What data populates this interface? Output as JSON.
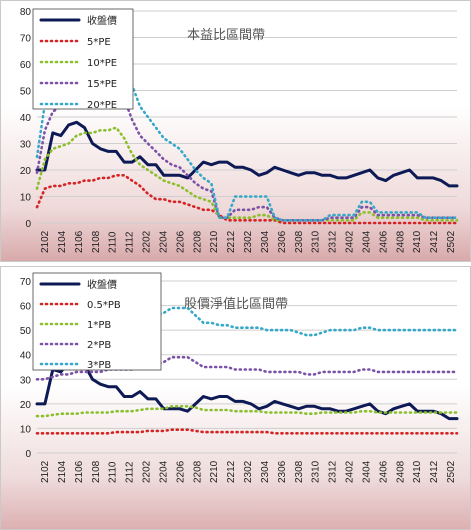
{
  "colors": {
    "close": "#0d1a55",
    "c1": "#d62222",
    "c2": "#8cbf2e",
    "c3": "#7b52a8",
    "c4": "#34a8c8"
  },
  "chart_data": [
    {
      "type": "line",
      "title": "本益比區間帶",
      "ylim": [
        0,
        80
      ],
      "yticks": [
        0,
        10,
        20,
        30,
        40,
        50,
        60,
        70,
        80
      ],
      "x_tick_labels": [
        "2102",
        "2104",
        "2106",
        "2108",
        "2110",
        "2112",
        "2202",
        "2204",
        "2206",
        "2208",
        "2210",
        "2212",
        "2302",
        "2304",
        "2306",
        "2308",
        "2310",
        "2312",
        "2402",
        "2404",
        "2406",
        "2408",
        "2410",
        "2412",
        "2502"
      ],
      "grid": "horizontal",
      "legend": "top-left",
      "series": [
        {
          "name": "收盤價",
          "values": [
            20,
            20,
            34,
            33,
            37,
            38,
            36,
            30,
            28,
            27,
            27,
            23,
            23,
            25,
            22,
            22,
            18,
            18,
            18,
            17,
            20,
            23,
            22,
            23,
            23,
            21,
            21,
            20,
            18,
            19,
            21,
            20,
            19,
            18,
            19,
            19,
            18,
            18,
            17,
            17,
            18,
            19,
            20,
            17,
            16,
            18,
            19,
            20,
            17,
            17,
            17,
            16,
            14,
            14
          ]
        },
        {
          "name": "5*PE",
          "values": [
            6,
            13,
            14,
            14,
            15,
            15,
            16,
            16,
            17,
            17,
            18,
            18,
            16,
            14,
            11,
            9,
            9,
            8,
            8,
            7,
            6,
            5,
            5,
            3,
            1,
            1,
            1,
            1,
            1,
            1,
            1,
            0,
            0,
            0,
            0,
            0,
            0,
            0,
            0,
            0,
            0,
            0,
            0,
            0,
            0,
            0,
            0,
            0,
            0,
            0,
            0,
            0,
            0,
            0
          ]
        },
        {
          "name": "10*PE",
          "values": [
            13,
            24,
            28,
            29,
            30,
            33,
            34,
            34,
            35,
            35,
            36,
            32,
            26,
            22,
            20,
            18,
            16,
            15,
            14,
            12,
            10,
            9,
            8,
            2,
            2,
            2,
            2,
            2,
            3,
            3,
            1,
            1,
            1,
            1,
            1,
            1,
            1,
            1,
            1,
            1,
            1,
            4,
            4,
            2,
            2,
            2,
            2,
            2,
            2,
            1,
            1,
            1,
            1,
            1
          ]
        },
        {
          "name": "15*PE",
          "values": [
            19,
            35,
            42,
            44,
            46,
            48,
            50,
            50,
            52,
            53,
            53,
            47,
            39,
            33,
            30,
            27,
            24,
            22,
            21,
            18,
            15,
            13,
            12,
            2,
            2,
            5,
            5,
            5,
            6,
            6,
            2,
            1,
            1,
            1,
            1,
            1,
            1,
            2,
            2,
            2,
            2,
            6,
            6,
            3,
            3,
            3,
            3,
            3,
            3,
            2,
            2,
            2,
            2,
            2
          ]
        },
        {
          "name": "20*PE",
          "values": [
            25,
            45,
            52,
            56,
            60,
            64,
            66,
            67,
            69,
            70,
            71,
            63,
            52,
            44,
            40,
            36,
            32,
            30,
            28,
            24,
            20,
            17,
            15,
            2,
            2,
            10,
            10,
            10,
            10,
            10,
            2,
            1,
            1,
            1,
            1,
            1,
            1,
            3,
            3,
            3,
            3,
            8,
            8,
            4,
            4,
            4,
            4,
            4,
            4,
            2,
            2,
            2,
            2,
            2
          ]
        }
      ]
    },
    {
      "type": "line",
      "title": "股價淨值比區間帶",
      "ylim": [
        0,
        70
      ],
      "yticks": [
        0,
        10,
        20,
        30,
        40,
        50,
        60,
        70
      ],
      "x_tick_labels": [
        "2102",
        "2104",
        "2106",
        "2108",
        "2110",
        "2112",
        "2202",
        "2204",
        "2206",
        "2208",
        "2210",
        "2212",
        "2302",
        "2304",
        "2306",
        "2308",
        "2310",
        "2312",
        "2402",
        "2404",
        "2406",
        "2408",
        "2410",
        "2412",
        "2502"
      ],
      "grid": "horizontal",
      "legend": "top-left",
      "series": [
        {
          "name": "收盤價",
          "values": [
            20,
            20,
            34,
            33,
            37,
            38,
            36,
            30,
            28,
            27,
            27,
            23,
            23,
            25,
            22,
            22,
            18,
            18,
            18,
            17,
            20,
            23,
            22,
            23,
            23,
            21,
            21,
            20,
            18,
            19,
            21,
            20,
            19,
            18,
            19,
            19,
            18,
            18,
            17,
            17,
            18,
            19,
            20,
            17,
            16,
            18,
            19,
            20,
            17,
            17,
            17,
            16,
            14,
            14
          ]
        },
        {
          "name": "0.5*PB",
          "values": [
            8,
            8,
            8,
            8,
            8,
            8,
            8,
            8,
            8,
            8,
            8.5,
            8.5,
            8.5,
            8.5,
            9,
            9,
            9,
            9.5,
            9.5,
            9.5,
            9,
            8.5,
            8.5,
            8.5,
            8.5,
            8.5,
            8.5,
            8.5,
            8.5,
            8.5,
            8,
            8,
            8,
            8,
            8,
            8,
            8,
            8,
            8,
            8,
            8,
            8,
            8,
            8,
            8,
            8,
            8,
            8,
            8,
            8,
            8,
            8,
            8,
            8
          ]
        },
        {
          "name": "1*PB",
          "values": [
            15,
            15,
            15.5,
            16,
            16,
            16,
            16.5,
            16.5,
            16.5,
            16.5,
            17,
            17,
            17,
            17.5,
            18,
            18,
            18,
            19,
            19,
            19,
            18.5,
            17.5,
            17.5,
            17.5,
            17.5,
            17,
            17,
            17,
            17,
            16.5,
            16.5,
            16.5,
            16.5,
            16.5,
            16,
            16,
            16.5,
            16.5,
            16.5,
            16.5,
            16.5,
            17,
            17,
            16.5,
            16.5,
            16.5,
            16.5,
            16.5,
            16.5,
            16.5,
            16.5,
            16.5,
            16.5,
            16.5
          ]
        },
        {
          "name": "2*PB",
          "values": [
            30,
            30,
            31,
            32,
            32,
            33,
            33,
            33,
            33,
            34,
            34,
            34,
            34,
            35,
            36,
            36,
            37,
            39,
            39,
            39,
            37,
            35,
            35,
            35,
            35,
            34,
            34,
            34,
            34,
            33,
            33,
            33,
            33,
            33,
            32,
            32,
            33,
            33,
            33,
            33,
            33,
            34,
            34,
            33,
            33,
            33,
            33,
            33,
            33,
            33,
            33,
            33,
            33,
            33
          ]
        },
        {
          "name": "3*PB",
          "values": [
            45,
            45,
            46,
            48,
            48,
            50,
            50,
            50,
            50,
            51,
            51,
            52,
            52,
            53,
            56,
            56,
            57,
            59,
            59,
            59,
            56,
            53,
            53,
            52,
            52,
            51,
            51,
            51,
            51,
            50,
            50,
            50,
            50,
            49,
            48,
            48,
            49,
            50,
            50,
            50,
            50,
            51,
            51,
            50,
            50,
            50,
            50,
            50,
            50,
            50,
            50,
            50,
            50,
            50
          ]
        }
      ]
    }
  ]
}
